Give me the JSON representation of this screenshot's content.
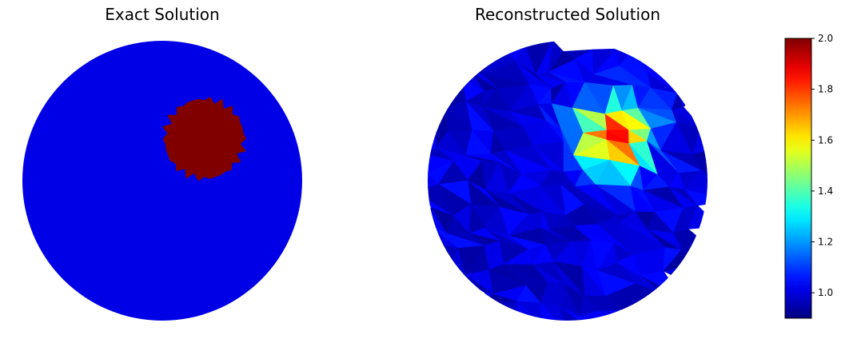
{
  "panels": [
    {
      "title": "Exact Solution"
    },
    {
      "title": "Reconstructed Solution"
    }
  ],
  "colorbar": {
    "colormap": "jet",
    "vmin": 0.9,
    "vmax": 2.0,
    "ticks": [
      "1.0",
      "1.2",
      "1.4",
      "1.6",
      "1.8",
      "2.0"
    ],
    "tick_values": [
      1.0,
      1.2,
      1.4,
      1.6,
      1.8,
      2.0
    ]
  },
  "chart_data": [
    {
      "type": "heatmap",
      "title": "Exact Solution",
      "domain": "unit disk",
      "background_value": 1.0,
      "inclusion": {
        "center": [
          0.3,
          0.3
        ],
        "radius": 0.3,
        "value": 2.0
      },
      "axes": "off"
    },
    {
      "type": "heatmap",
      "title": "Reconstructed Solution",
      "domain": "unit disk",
      "mesh": "triangular",
      "background_value": 1.0,
      "peak": {
        "center": [
          0.33,
          0.32
        ],
        "value": 1.9
      },
      "value_range": [
        0.9,
        1.9
      ],
      "axes": "off"
    }
  ]
}
